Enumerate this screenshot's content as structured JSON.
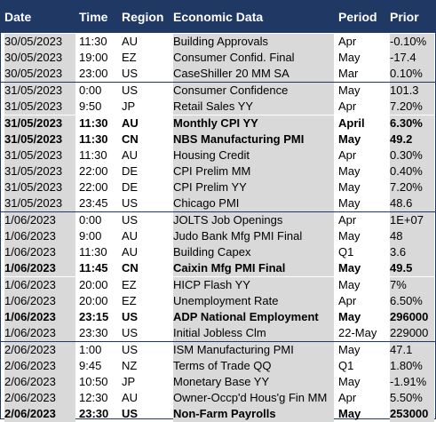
{
  "headers": {
    "date": "Date",
    "time": "Time",
    "region": "Region",
    "data": "Economic Data",
    "period": "Period",
    "prior": "Prior"
  },
  "rows": [
    {
      "date": "30/05/2023",
      "time": "11:30",
      "region": "AU",
      "data": "Building Approvals",
      "period": "Apr",
      "prior": "-0.10%"
    },
    {
      "date": "30/05/2023",
      "time": "19:00",
      "region": "EZ",
      "data": "Consumer Confid. Final",
      "period": "May",
      "prior": "-17.4"
    },
    {
      "date": "30/05/2023",
      "time": "23:00",
      "region": "US",
      "data": "CaseShiller 20 MM SA",
      "period": "Mar",
      "prior": "0.10%"
    },
    {
      "date": "31/05/2023",
      "time": "0:00",
      "region": "US",
      "data": "Consumer Confidence",
      "period": "May",
      "prior": "101.3"
    },
    {
      "date": "31/05/2023",
      "time": "9:50",
      "region": "JP",
      "data": "Retail Sales YY",
      "period": "Apr",
      "prior": "7.20%"
    },
    {
      "date": "31/05/2023",
      "time": "11:30",
      "region": "AU",
      "data": "Monthly CPI YY",
      "period": "April",
      "prior": "6.30%",
      "bold": true
    },
    {
      "date": "31/05/2023",
      "time": "11:30",
      "region": "CN",
      "data": "NBS Manufacturing PMI",
      "period": "May",
      "prior": "49.2",
      "bold": true
    },
    {
      "date": "31/05/2023",
      "time": "11:30",
      "region": "AU",
      "data": "Housing Credit",
      "period": "Apr",
      "prior": "0.30%"
    },
    {
      "date": "31/05/2023",
      "time": "22:00",
      "region": "DE",
      "data": "CPI Prelim MM",
      "period": "May",
      "prior": "0.40%"
    },
    {
      "date": "31/05/2023",
      "time": "22:00",
      "region": "DE",
      "data": "CPI Prelim YY",
      "period": "May",
      "prior": "7.20%"
    },
    {
      "date": "31/05/2023",
      "time": "23:45",
      "region": "US",
      "data": "Chicago PMI",
      "period": "May",
      "prior": "48.6"
    },
    {
      "date": "1/06/2023",
      "time": "0:00",
      "region": "US",
      "data": "JOLTS Job Openings",
      "period": "Apr",
      "prior": "1E+07"
    },
    {
      "date": "1/06/2023",
      "time": "9:00",
      "region": "AU",
      "data": "Judo Bank Mfg PMI Final",
      "period": "May",
      "prior": "48"
    },
    {
      "date": "1/06/2023",
      "time": "11:30",
      "region": "AU",
      "data": "Building Capex",
      "period": "Q1",
      "prior": "3.6"
    },
    {
      "date": "1/06/2023",
      "time": "11:45",
      "region": "CN",
      "data": "Caixin Mfg PMI Final",
      "period": "May",
      "prior": "49.5",
      "bold": true
    },
    {
      "date": "1/06/2023",
      "time": "20:00",
      "region": "EZ",
      "data": "HICP Flash YY",
      "period": "May",
      "prior": "7%"
    },
    {
      "date": "1/06/2023",
      "time": "20:00",
      "region": "EZ",
      "data": "Unemployment Rate",
      "period": "Apr",
      "prior": "6.50%"
    },
    {
      "date": "1/06/2023",
      "time": "23:15",
      "region": "US",
      "data": "ADP National Employment",
      "period": "May",
      "prior": "296000",
      "bold": true
    },
    {
      "date": "1/06/2023",
      "time": "23:30",
      "region": "US",
      "data": "Initial Jobless Clm",
      "period": "22-May",
      "prior": "229000"
    },
    {
      "date": "2/06/2023",
      "time": "1:00",
      "region": "US",
      "data": "ISM Manufacturing PMI",
      "period": "May",
      "prior": "47.1"
    },
    {
      "date": "2/06/2023",
      "time": "9:45",
      "region": "NZ",
      "data": "Terms of Trade QQ",
      "period": "Q1",
      "prior": "1.80%"
    },
    {
      "date": "2/06/2023",
      "time": "10:50",
      "region": "JP",
      "data": "Monetary Base YY",
      "period": "May",
      "prior": "-1.91%"
    },
    {
      "date": "2/06/2023",
      "time": "12:30",
      "region": "AU",
      "data": "Owner-Occp'd Hous'g Fin MM",
      "period": "Apr",
      "prior": "5.50%"
    },
    {
      "date": "2/06/2023",
      "time": "23:30",
      "region": "US",
      "data": "Non-Farm Payrolls",
      "period": "May",
      "prior": "253000",
      "bold": true
    }
  ],
  "colors": {
    "header_bg": "#1f3864",
    "header_text": "#ffffff",
    "shaded_cell": "#d9d9d9"
  }
}
